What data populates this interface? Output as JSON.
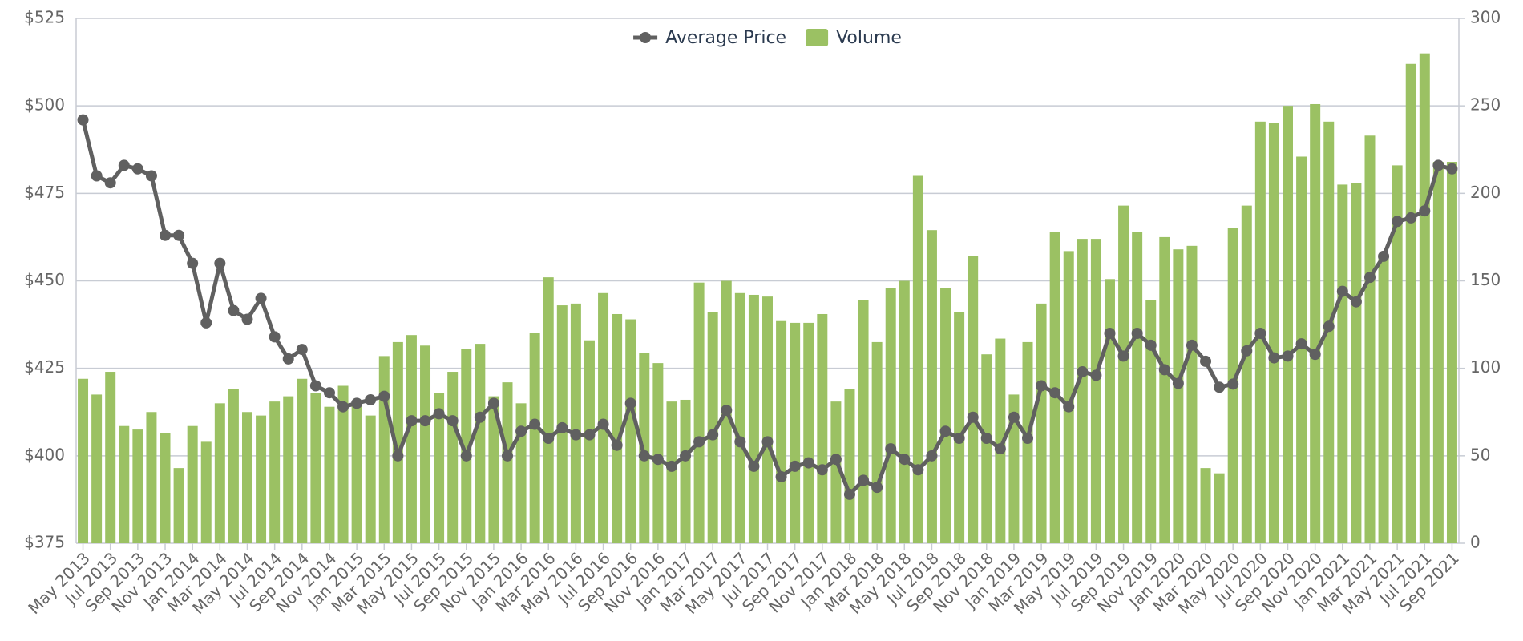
{
  "chart_data": {
    "type": "combo",
    "categories": [
      "May 2013",
      null,
      "Jul 2013",
      null,
      "Sep 2013",
      null,
      "Nov 2013",
      null,
      "Jan 2014",
      null,
      "Mar 2014",
      null,
      "May 2014",
      null,
      "Jul 2014",
      null,
      "Sep 2014",
      null,
      "Nov 2014",
      null,
      "Jan 2015",
      null,
      "Mar 2015",
      null,
      "May 2015",
      null,
      "Jul 2015",
      null,
      "Sep 2015",
      null,
      "Nov 2015",
      null,
      "Jan 2016",
      null,
      "Mar 2016",
      null,
      "May 2016",
      null,
      "Jul 2016",
      null,
      "Sep 2016",
      null,
      "Nov 2016",
      null,
      "Jan 2017",
      null,
      "Mar 2017",
      null,
      "May 2017",
      null,
      "Jul 2017",
      null,
      "Sep 2017",
      null,
      "Nov 2017",
      null,
      "Jan 2018",
      null,
      "Mar 2018",
      null,
      "May 2018",
      null,
      "Jul 2018",
      null,
      "Sep 2018",
      null,
      "Nov 2018",
      null,
      "Jan 2019",
      null,
      "Mar 2019",
      null,
      "May 2019",
      null,
      "Jul 2019",
      null,
      "Sep 2019",
      null,
      "Nov 2019",
      null,
      "Jan 2020",
      null,
      "Mar 2020",
      null,
      "May 2020",
      null,
      "Jul 2020",
      null,
      "Sep 2020",
      null,
      "Nov 2020",
      null,
      "Jan 2021",
      null,
      "Mar 2021",
      null,
      "May 2021",
      null,
      "Jul 2021",
      null,
      "Sep 2021"
    ],
    "series": [
      {
        "name": "Average Price",
        "type": "line",
        "color": "#606060",
        "values": [
          496,
          480,
          478,
          483,
          482,
          480,
          463,
          463,
          455,
          438,
          455,
          441.5,
          439,
          445,
          434,
          427.7,
          430.4,
          420,
          418,
          414,
          415,
          416,
          417,
          400,
          410,
          410,
          412,
          410,
          400,
          411,
          415,
          400,
          407,
          409,
          405,
          408,
          406,
          406,
          409,
          403,
          415,
          400,
          399,
          397,
          400,
          404,
          406,
          413,
          404,
          397,
          404,
          394,
          397,
          398,
          396,
          399,
          389,
          393,
          391,
          402,
          399,
          396,
          400,
          407,
          405,
          411,
          405,
          402,
          411,
          405,
          420,
          418,
          414,
          424,
          423,
          435,
          428.5,
          435,
          431.6,
          424.6,
          420.7,
          431.6,
          427,
          419.6,
          420.5,
          430,
          435,
          428,
          428.5,
          432,
          429,
          437,
          447,
          444,
          451,
          457,
          467,
          468,
          470,
          483,
          482
        ]
      },
      {
        "name": "Volume",
        "type": "bar",
        "axis": "y2",
        "color": "#9bc163",
        "values": [
          94,
          85,
          98,
          67,
          65,
          75,
          63,
          43,
          67,
          58,
          80,
          88,
          75,
          73,
          81,
          84,
          94,
          86,
          78,
          90,
          81,
          73,
          107,
          115,
          119,
          113,
          86,
          98,
          111,
          114,
          84,
          92,
          80,
          120,
          152,
          136,
          137,
          116,
          143,
          131,
          128,
          109,
          103,
          81,
          82,
          149,
          132,
          150,
          143,
          142,
          141,
          127,
          126,
          126,
          131,
          81,
          88,
          139,
          115,
          146,
          150,
          210,
          179,
          146,
          132,
          164,
          108,
          117,
          85,
          115,
          137,
          178,
          167,
          174,
          174,
          151,
          193,
          178,
          139,
          175,
          168,
          170,
          43,
          40,
          180,
          193,
          241,
          240,
          250,
          221,
          251,
          241,
          205,
          206,
          233,
          163,
          216,
          274,
          280,
          218,
          218
        ]
      }
    ],
    "ylim": [
      375,
      525
    ],
    "yticks": [
      {
        "value": 375,
        "label": "$375"
      },
      {
        "value": 400,
        "label": "$400"
      },
      {
        "value": 425,
        "label": "$425"
      },
      {
        "value": 450,
        "label": "$450"
      },
      {
        "value": 475,
        "label": "$475"
      },
      {
        "value": 500,
        "label": "$500"
      },
      {
        "value": 525,
        "label": "$525"
      }
    ],
    "y2lim": [
      0,
      300
    ],
    "y2ticks": [
      0,
      50,
      100,
      150,
      200,
      250,
      300
    ],
    "grid": true,
    "legend": "top"
  }
}
